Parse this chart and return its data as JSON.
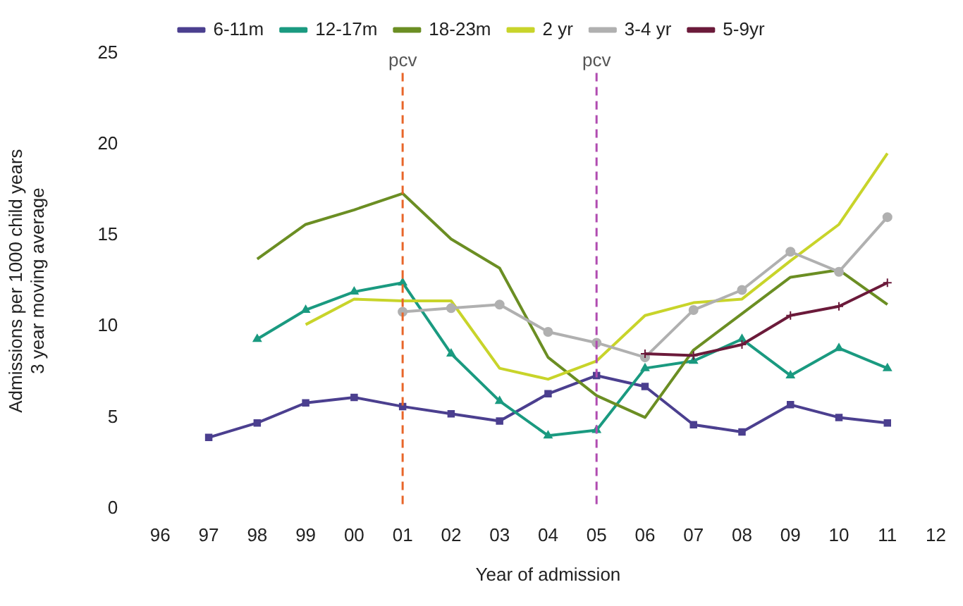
{
  "chart_data": {
    "type": "line",
    "xlabel": "Year of admission",
    "ylabel": "Admissions per 1000 child years\n3 year moving average",
    "categories": [
      "96",
      "97",
      "98",
      "99",
      "00",
      "01",
      "02",
      "03",
      "04",
      "05",
      "06",
      "07",
      "08",
      "09",
      "10",
      "11",
      "12"
    ],
    "ylim": [
      0,
      25
    ],
    "yticks": [
      0,
      5,
      10,
      15,
      20,
      25
    ],
    "grid": false,
    "legend": "top",
    "series": [
      {
        "name": "6-11m",
        "color": "#4b3f8f",
        "marker": "square",
        "values": [
          null,
          3.9,
          4.7,
          5.8,
          6.1,
          5.6,
          5.2,
          4.8,
          6.3,
          7.3,
          6.7,
          4.6,
          4.2,
          5.7,
          5.0,
          4.7,
          null
        ]
      },
      {
        "name": "12-17m",
        "color": "#1a9a80",
        "marker": "triangle",
        "values": [
          null,
          null,
          9.3,
          10.9,
          11.9,
          12.4,
          8.5,
          5.9,
          4.0,
          4.3,
          7.7,
          8.1,
          9.3,
          7.3,
          8.8,
          7.7,
          null
        ]
      },
      {
        "name": "18-23m",
        "color": "#6b8e23",
        "marker": "none",
        "values": [
          null,
          null,
          13.7,
          15.6,
          16.4,
          17.3,
          14.8,
          13.2,
          8.3,
          6.2,
          5.0,
          8.7,
          10.7,
          12.7,
          13.1,
          11.2,
          null
        ]
      },
      {
        "name": "2 yr",
        "color": "#c8d42a",
        "marker": "none",
        "values": [
          null,
          null,
          null,
          10.1,
          11.5,
          11.4,
          11.4,
          7.7,
          7.1,
          8.1,
          10.6,
          11.3,
          11.5,
          13.6,
          15.6,
          19.5,
          null
        ]
      },
      {
        "name": "3-4 yr",
        "color": "#b0b0b0",
        "marker": "circle",
        "values": [
          null,
          null,
          null,
          null,
          null,
          10.8,
          11.0,
          11.2,
          9.7,
          9.1,
          8.3,
          10.9,
          12.0,
          14.1,
          13.0,
          16.0,
          null
        ]
      },
      {
        "name": "5-9yr",
        "color": "#6b1a3a",
        "marker": "cross",
        "values": [
          null,
          null,
          null,
          null,
          null,
          null,
          null,
          null,
          null,
          null,
          8.5,
          8.4,
          9.0,
          10.6,
          11.1,
          12.4,
          null
        ]
      }
    ],
    "ref_lines": [
      {
        "axis": "x",
        "value": "01",
        "label": "pcv",
        "color": "#e8662a",
        "line_style": "dashed"
      },
      {
        "axis": "x",
        "value": "05",
        "label": "pcv",
        "color": "#b04cb0",
        "line_style": "dashed"
      }
    ]
  }
}
